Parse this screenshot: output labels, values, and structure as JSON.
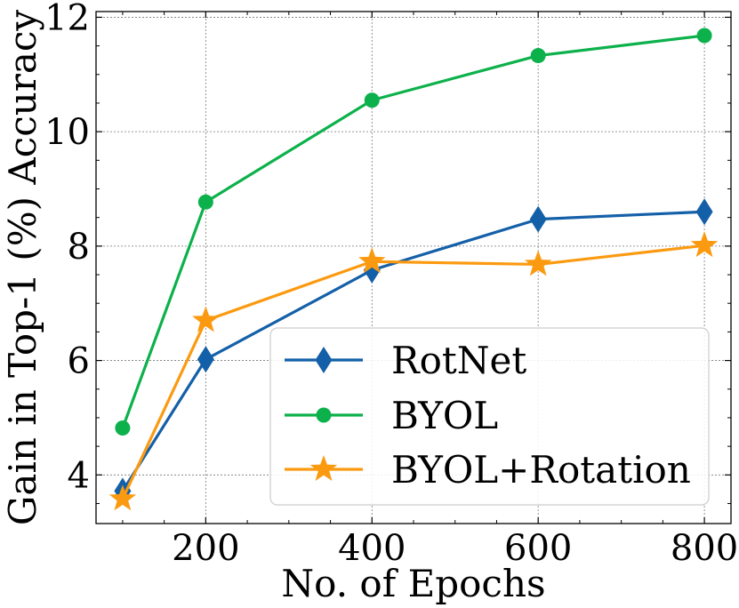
{
  "chart_data": {
    "type": "line",
    "title": "",
    "xlabel": "No. of Epochs",
    "ylabel": "Gain in Top-1 (%) Accuracy",
    "x": [
      100,
      200,
      400,
      600,
      800
    ],
    "xlim": [
      68,
      832
    ],
    "ylim": [
      3.15,
      12.1
    ],
    "xticks": [
      200,
      400,
      600,
      800
    ],
    "yticks": [
      4,
      6,
      8,
      10,
      12
    ],
    "xtick_labels": [
      "200",
      "400",
      "600",
      "800"
    ],
    "ytick_labels": [
      "4",
      "6",
      "8",
      "10",
      "12"
    ],
    "grid": true,
    "legend_position": "lower-right",
    "series": [
      {
        "name": "RotNet",
        "values": [
          3.72,
          6.02,
          7.58,
          8.47,
          8.6
        ],
        "color": "#1460a8",
        "marker": "diamond"
      },
      {
        "name": "BYOL",
        "values": [
          4.82,
          8.77,
          10.55,
          11.33,
          11.68
        ],
        "color": "#0cb14b",
        "marker": "circle"
      },
      {
        "name": "BYOL+Rotation",
        "values": [
          3.58,
          6.7,
          7.73,
          7.68,
          8.01
        ],
        "color": "#fb9a10",
        "marker": "star"
      }
    ]
  }
}
